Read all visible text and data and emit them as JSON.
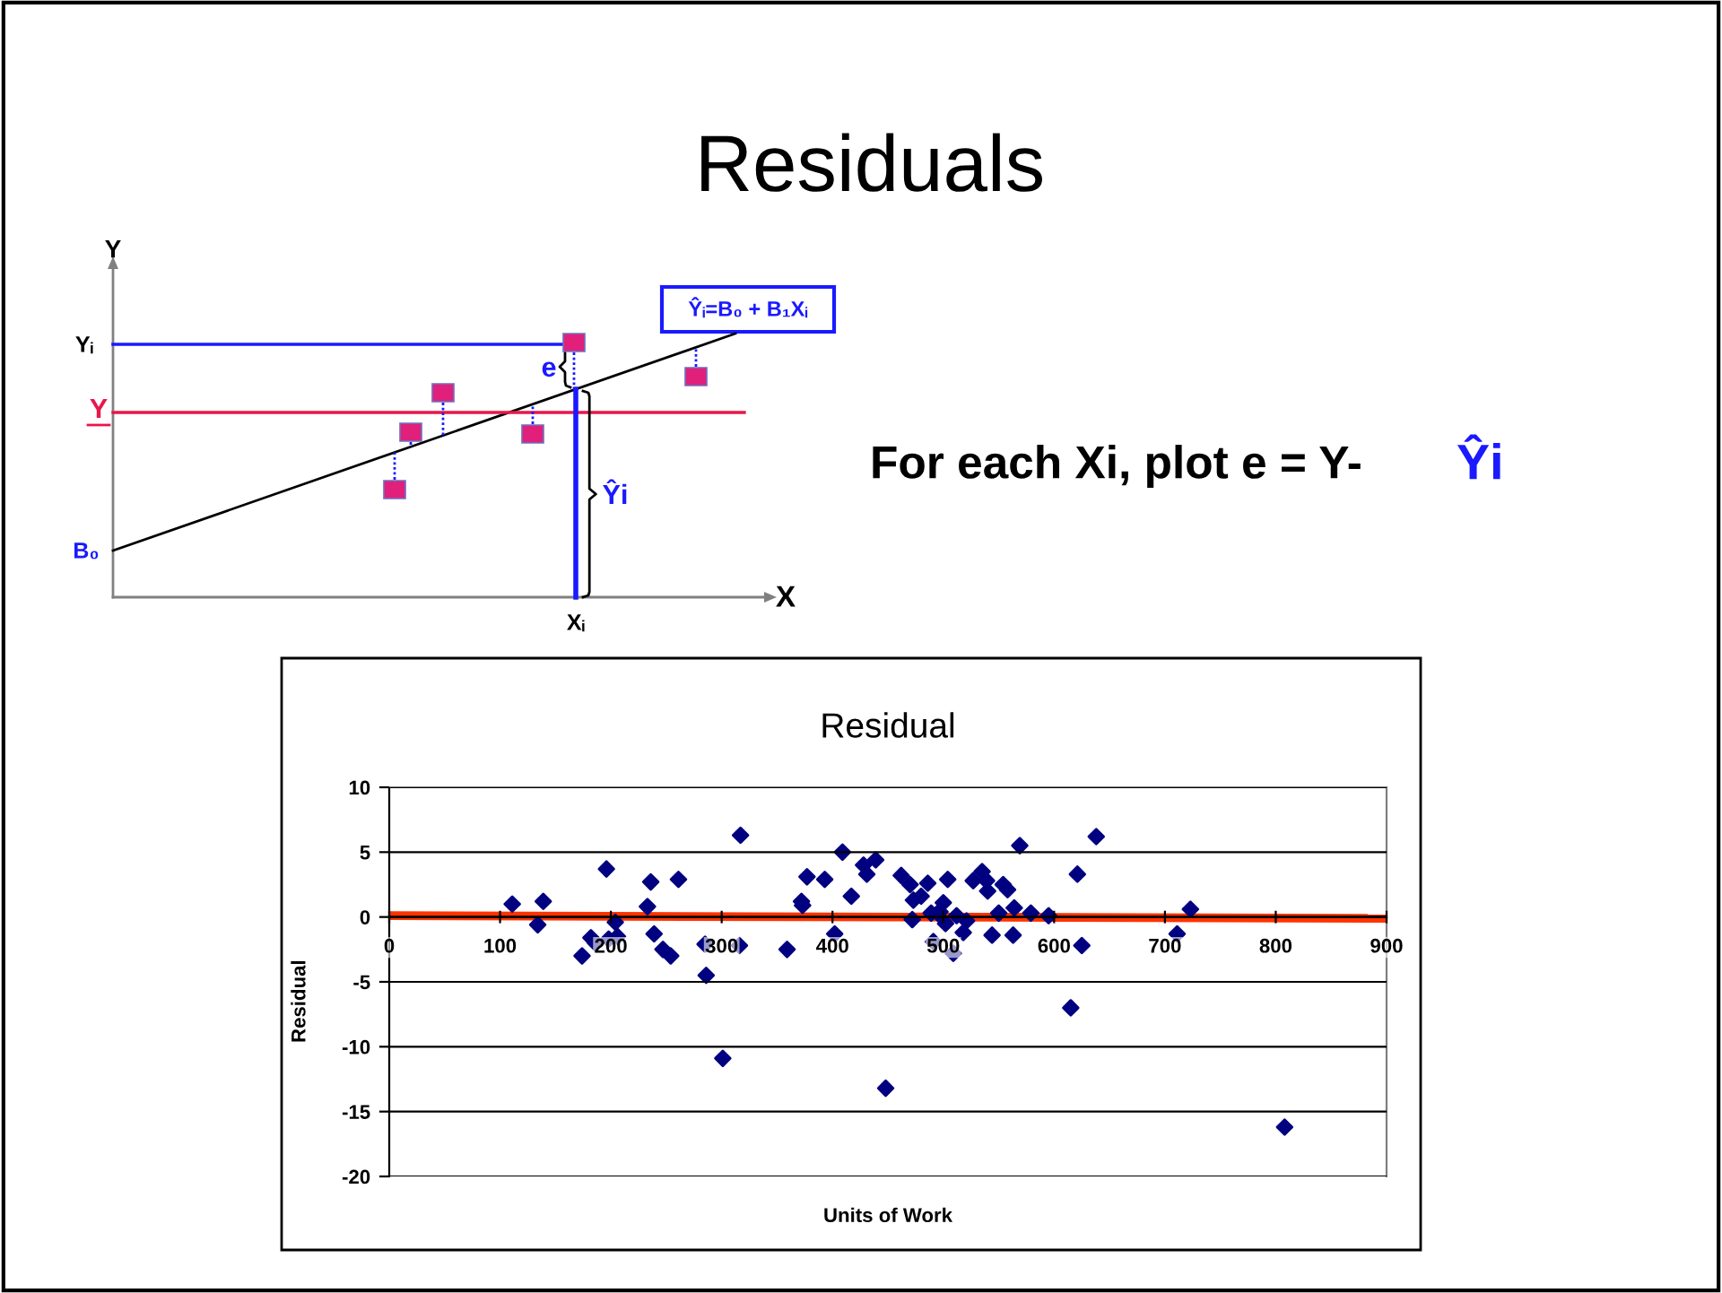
{
  "chart_data": [
    {
      "type": "other",
      "title": "Residuals",
      "annotations": [
        "Y",
        "X",
        "Yᵢ",
        "Y",
        "B₀",
        "Xᵢ",
        "e",
        "Ŷᵢ=B₀ + B₁Xᵢ",
        "Ŷi",
        "For each Xi, plot e = Y-",
        "Ŷi"
      ]
    },
    {
      "type": "scatter",
      "title": "Residual",
      "xlabel": "Units of Work",
      "ylabel": "Residual",
      "xlim": [
        0,
        900
      ],
      "xticks": [
        0,
        100,
        200,
        300,
        400,
        500,
        600,
        700,
        800,
        900
      ],
      "ylim": [
        -20,
        10
      ],
      "yticks": [
        -20,
        -15,
        -10,
        -5,
        0,
        5,
        10
      ],
      "grid": "y",
      "marker": "diamond",
      "series": [
        {
          "type": "scatter",
          "color": "#000080",
          "x": [
            111,
            134,
            139,
            174,
            182,
            186,
            196,
            198,
            204,
            206,
            233,
            236,
            239,
            247,
            254,
            261,
            285,
            286,
            301,
            316,
            317,
            359,
            372,
            373,
            377,
            393,
            402,
            409,
            417,
            428,
            431,
            439,
            448,
            462,
            470,
            472,
            473,
            480,
            486,
            489,
            491,
            495,
            497,
            500,
            502,
            504,
            509,
            512,
            518,
            521,
            527,
            535,
            539,
            540,
            544,
            550,
            554,
            558,
            563,
            564,
            569,
            579,
            595,
            615,
            621,
            625,
            638,
            711,
            723,
            808
          ],
          "values": [
            1.0,
            -0.6,
            1.2,
            -3.0,
            -1.6,
            -2.0,
            3.7,
            -1.7,
            -0.4,
            -1.5,
            0.8,
            2.7,
            -1.3,
            -2.5,
            -3.0,
            2.9,
            -2.1,
            -4.5,
            -10.9,
            -2.2,
            6.3,
            -2.5,
            1.2,
            0.9,
            3.1,
            2.9,
            -1.3,
            5.0,
            1.6,
            4.0,
            3.3,
            4.4,
            -13.2,
            3.2,
            2.5,
            -0.2,
            1.3,
            1.6,
            2.6,
            0.3,
            -1.9,
            0.3,
            0.4,
            1.1,
            -0.5,
            2.9,
            -2.8,
            0.1,
            -1.2,
            -0.3,
            2.8,
            3.5,
            2.8,
            2.0,
            -1.4,
            0.3,
            2.5,
            2.1,
            -1.4,
            0.7,
            5.5,
            0.3,
            0.1,
            -7.0,
            3.3,
            -2.2,
            6.2,
            -1.3,
            0.6,
            -16.2
          ]
        },
        {
          "type": "line",
          "color": "#ff3300",
          "marker": "none",
          "x": [
            0,
            900
          ],
          "values": [
            0.1,
            -0.1
          ]
        }
      ]
    }
  ]
}
